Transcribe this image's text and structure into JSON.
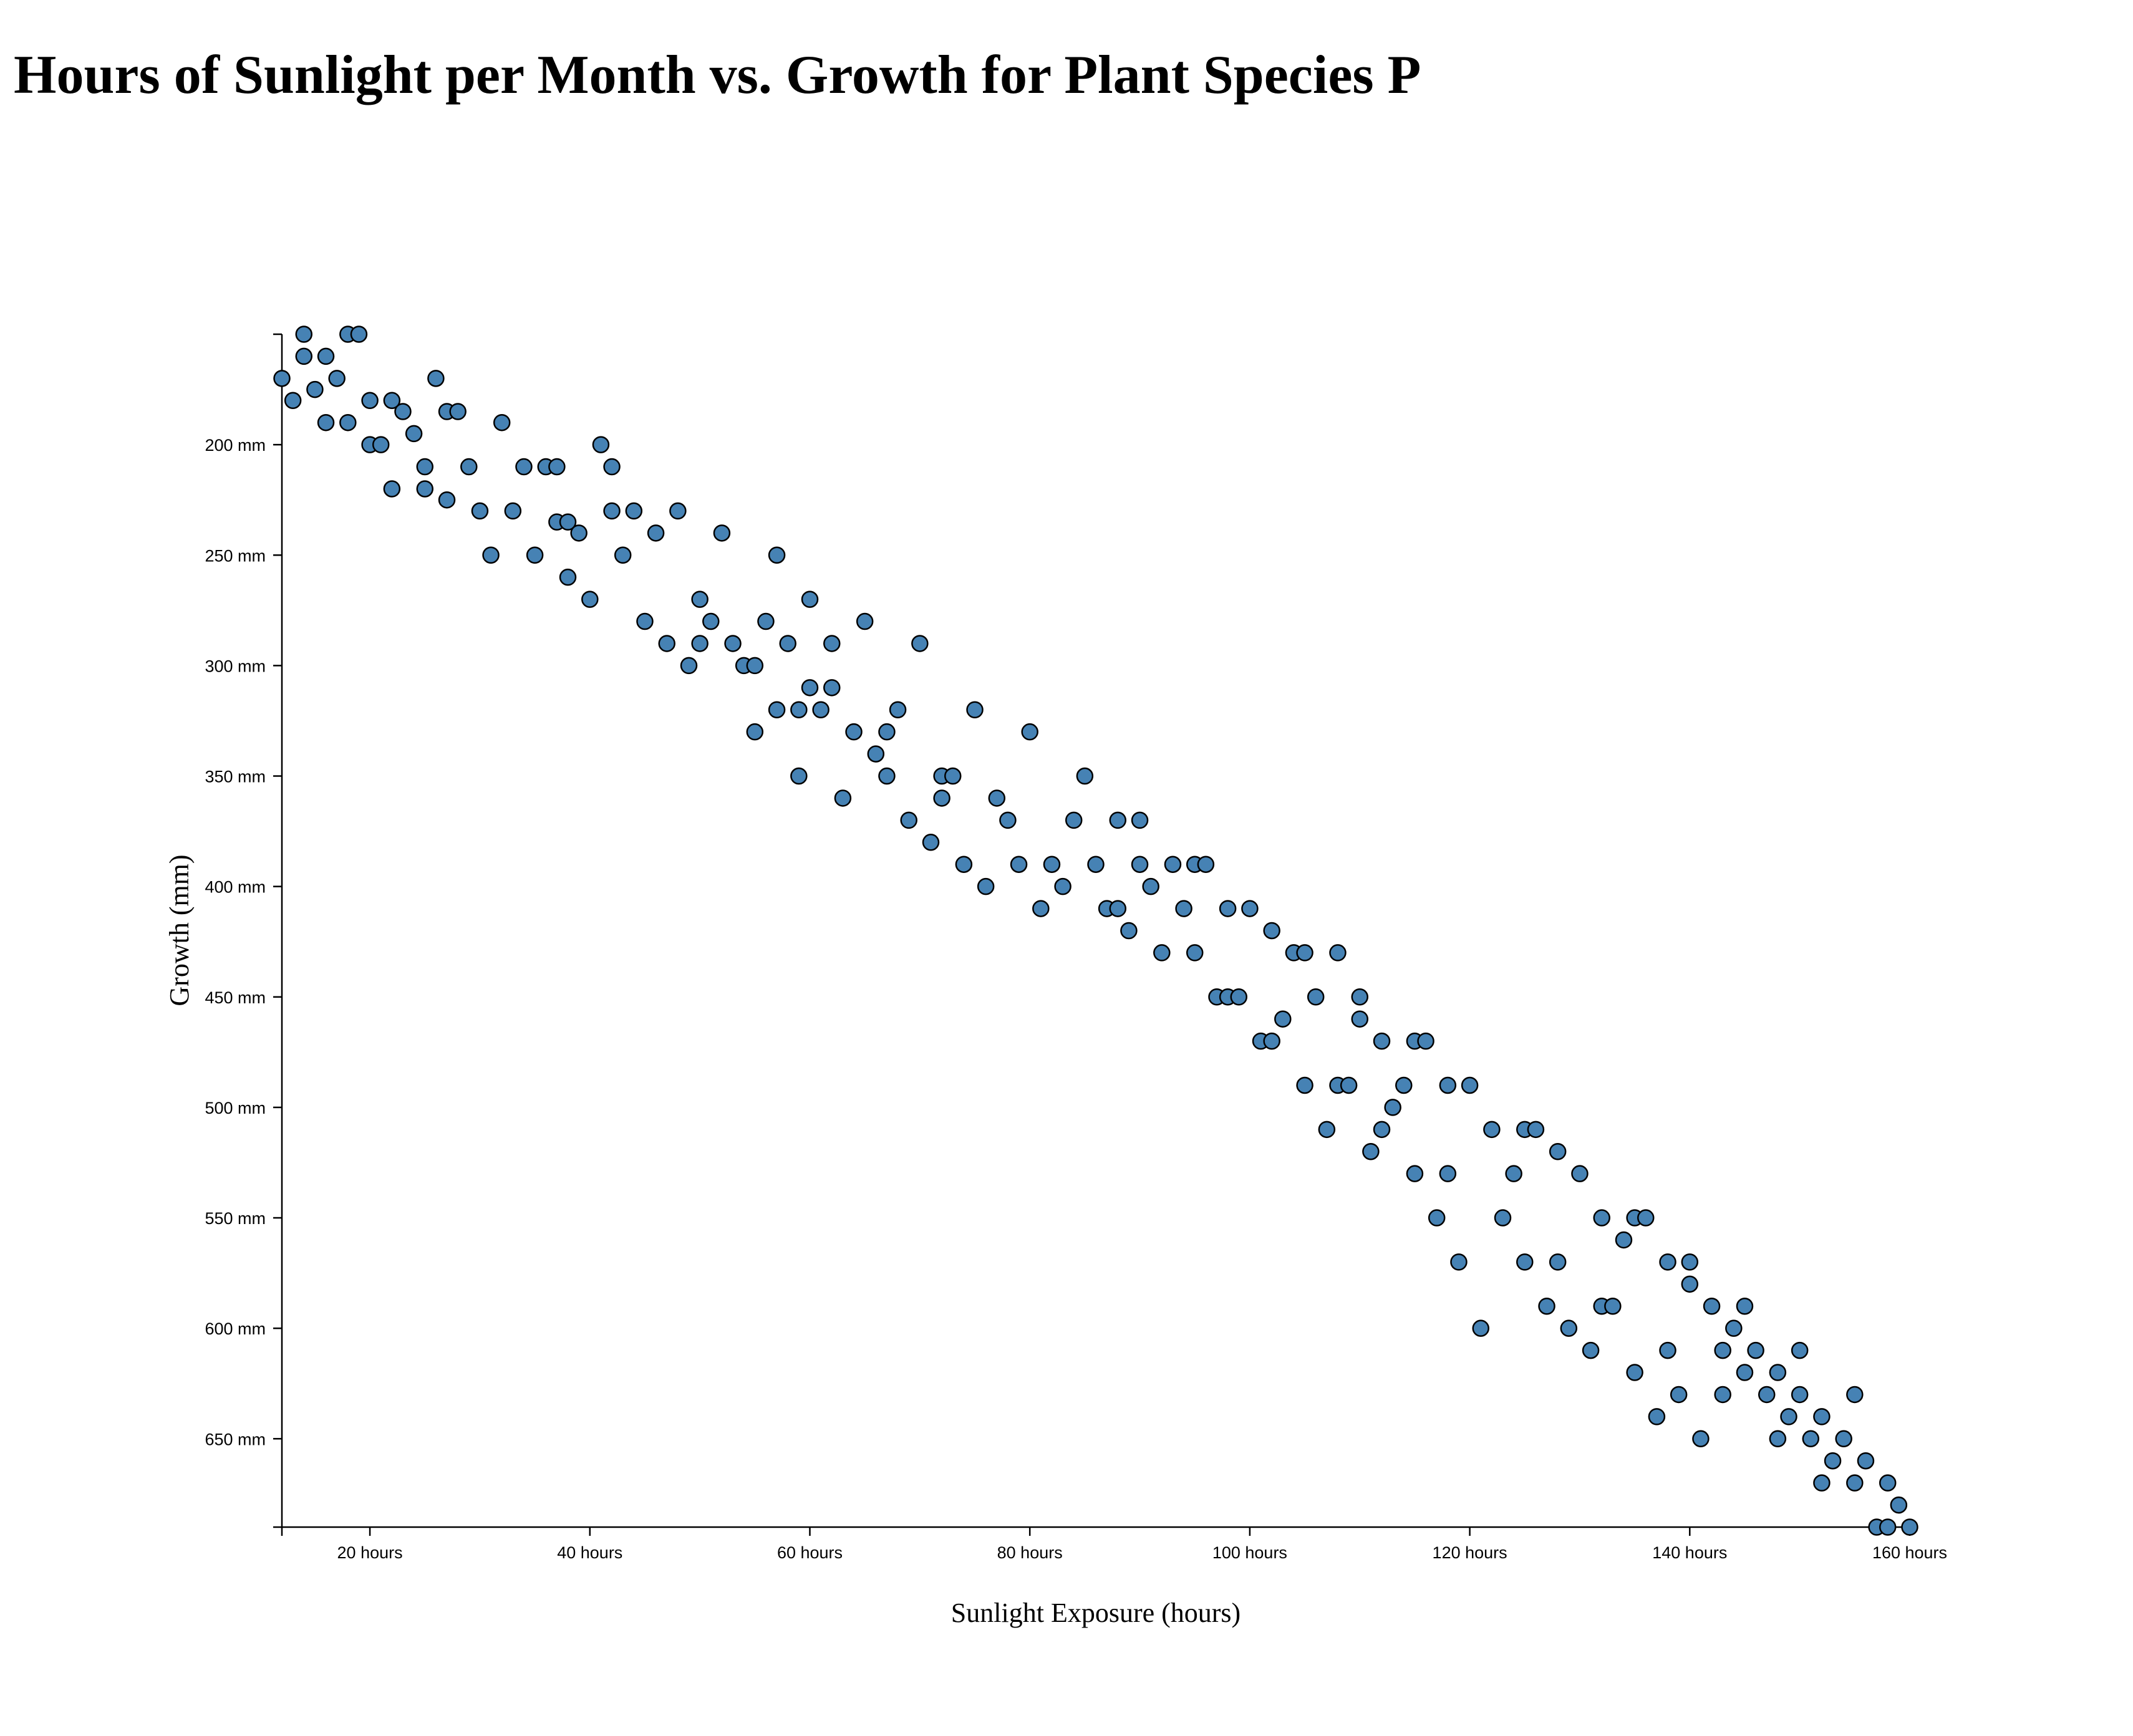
{
  "chart_data": {
    "type": "scatter",
    "title": "Hours of Sunlight per Month vs. Growth for Plant Species P",
    "xlabel": "Sunlight Exposure (hours)",
    "ylabel": "Growth (mm)",
    "xlim": [
      12,
      160
    ],
    "ylim": [
      150,
      690
    ],
    "y_inverted": true,
    "grid": false,
    "x_ticks": [
      20,
      40,
      60,
      80,
      100,
      120,
      140,
      160
    ],
    "x_tick_labels": [
      "20 hours",
      "40 hours",
      "60 hours",
      "80 hours",
      "100 hours",
      "120 hours",
      "140 hours",
      "160 hours"
    ],
    "y_ticks": [
      200,
      250,
      300,
      350,
      400,
      450,
      500,
      550,
      600,
      650
    ],
    "y_tick_labels": [
      "200 mm",
      "250 mm",
      "300 mm",
      "350 mm",
      "400 mm",
      "450 mm",
      "500 mm",
      "550 mm",
      "600 mm",
      "650 mm"
    ],
    "marker_color": "#4682b4",
    "marker_edge_color": "#000000",
    "points": [
      [
        12,
        170
      ],
      [
        13,
        180
      ],
      [
        14,
        160
      ],
      [
        14,
        150
      ],
      [
        15,
        175
      ],
      [
        16,
        160
      ],
      [
        16,
        190
      ],
      [
        17,
        170
      ],
      [
        18,
        150
      ],
      [
        18,
        190
      ],
      [
        19,
        150
      ],
      [
        20,
        180
      ],
      [
        20,
        200
      ],
      [
        21,
        200
      ],
      [
        22,
        180
      ],
      [
        22,
        220
      ],
      [
        23,
        185
      ],
      [
        24,
        195
      ],
      [
        25,
        210
      ],
      [
        25,
        220
      ],
      [
        26,
        170
      ],
      [
        27,
        185
      ],
      [
        27,
        225
      ],
      [
        28,
        185
      ],
      [
        29,
        210
      ],
      [
        30,
        230
      ],
      [
        31,
        250
      ],
      [
        32,
        190
      ],
      [
        33,
        230
      ],
      [
        34,
        210
      ],
      [
        35,
        250
      ],
      [
        36,
        210
      ],
      [
        37,
        210
      ],
      [
        37,
        235
      ],
      [
        38,
        235
      ],
      [
        38,
        260
      ],
      [
        39,
        240
      ],
      [
        40,
        270
      ],
      [
        41,
        200
      ],
      [
        42,
        210
      ],
      [
        42,
        230
      ],
      [
        43,
        250
      ],
      [
        44,
        230
      ],
      [
        45,
        280
      ],
      [
        46,
        240
      ],
      [
        47,
        290
      ],
      [
        48,
        230
      ],
      [
        49,
        300
      ],
      [
        50,
        270
      ],
      [
        50,
        290
      ],
      [
        51,
        280
      ],
      [
        52,
        240
      ],
      [
        53,
        290
      ],
      [
        54,
        300
      ],
      [
        55,
        300
      ],
      [
        55,
        330
      ],
      [
        56,
        280
      ],
      [
        57,
        250
      ],
      [
        57,
        320
      ],
      [
        58,
        290
      ],
      [
        59,
        320
      ],
      [
        59,
        350
      ],
      [
        60,
        270
      ],
      [
        60,
        310
      ],
      [
        61,
        320
      ],
      [
        62,
        290
      ],
      [
        62,
        310
      ],
      [
        63,
        360
      ],
      [
        64,
        330
      ],
      [
        65,
        280
      ],
      [
        66,
        340
      ],
      [
        67,
        330
      ],
      [
        67,
        350
      ],
      [
        68,
        320
      ],
      [
        69,
        370
      ],
      [
        70,
        290
      ],
      [
        71,
        380
      ],
      [
        72,
        350
      ],
      [
        72,
        360
      ],
      [
        73,
        350
      ],
      [
        74,
        390
      ],
      [
        75,
        320
      ],
      [
        76,
        400
      ],
      [
        77,
        360
      ],
      [
        78,
        370
      ],
      [
        79,
        390
      ],
      [
        80,
        330
      ],
      [
        81,
        410
      ],
      [
        82,
        390
      ],
      [
        83,
        400
      ],
      [
        84,
        370
      ],
      [
        85,
        350
      ],
      [
        86,
        390
      ],
      [
        87,
        410
      ],
      [
        88,
        370
      ],
      [
        88,
        410
      ],
      [
        89,
        420
      ],
      [
        90,
        370
      ],
      [
        90,
        390
      ],
      [
        91,
        400
      ],
      [
        92,
        430
      ],
      [
        93,
        390
      ],
      [
        94,
        410
      ],
      [
        95,
        390
      ],
      [
        95,
        430
      ],
      [
        96,
        390
      ],
      [
        97,
        450
      ],
      [
        98,
        410
      ],
      [
        98,
        450
      ],
      [
        99,
        450
      ],
      [
        100,
        410
      ],
      [
        101,
        470
      ],
      [
        102,
        420
      ],
      [
        102,
        470
      ],
      [
        103,
        460
      ],
      [
        104,
        430
      ],
      [
        105,
        430
      ],
      [
        105,
        490
      ],
      [
        106,
        450
      ],
      [
        107,
        510
      ],
      [
        108,
        430
      ],
      [
        108,
        490
      ],
      [
        109,
        490
      ],
      [
        110,
        450
      ],
      [
        110,
        460
      ],
      [
        111,
        520
      ],
      [
        112,
        470
      ],
      [
        112,
        510
      ],
      [
        113,
        500
      ],
      [
        114,
        490
      ],
      [
        115,
        470
      ],
      [
        115,
        530
      ],
      [
        116,
        470
      ],
      [
        117,
        550
      ],
      [
        118,
        490
      ],
      [
        118,
        530
      ],
      [
        119,
        570
      ],
      [
        120,
        490
      ],
      [
        121,
        600
      ],
      [
        122,
        510
      ],
      [
        123,
        550
      ],
      [
        124,
        530
      ],
      [
        125,
        510
      ],
      [
        125,
        570
      ],
      [
        126,
        510
      ],
      [
        127,
        590
      ],
      [
        128,
        520
      ],
      [
        128,
        570
      ],
      [
        129,
        600
      ],
      [
        130,
        530
      ],
      [
        131,
        610
      ],
      [
        132,
        550
      ],
      [
        132,
        590
      ],
      [
        133,
        590
      ],
      [
        134,
        560
      ],
      [
        135,
        550
      ],
      [
        135,
        620
      ],
      [
        136,
        550
      ],
      [
        137,
        640
      ],
      [
        138,
        570
      ],
      [
        138,
        610
      ],
      [
        139,
        630
      ],
      [
        140,
        570
      ],
      [
        140,
        580
      ],
      [
        141,
        650
      ],
      [
        142,
        590
      ],
      [
        143,
        610
      ],
      [
        143,
        630
      ],
      [
        144,
        600
      ],
      [
        145,
        590
      ],
      [
        145,
        620
      ],
      [
        146,
        610
      ],
      [
        147,
        630
      ],
      [
        148,
        620
      ],
      [
        148,
        650
      ],
      [
        149,
        640
      ],
      [
        150,
        610
      ],
      [
        150,
        630
      ],
      [
        151,
        650
      ],
      [
        152,
        640
      ],
      [
        152,
        670
      ],
      [
        153,
        660
      ],
      [
        154,
        650
      ],
      [
        155,
        630
      ],
      [
        155,
        670
      ],
      [
        156,
        660
      ],
      [
        157,
        690
      ],
      [
        158,
        670
      ],
      [
        158,
        690
      ],
      [
        159,
        680
      ],
      [
        160,
        690
      ]
    ]
  }
}
